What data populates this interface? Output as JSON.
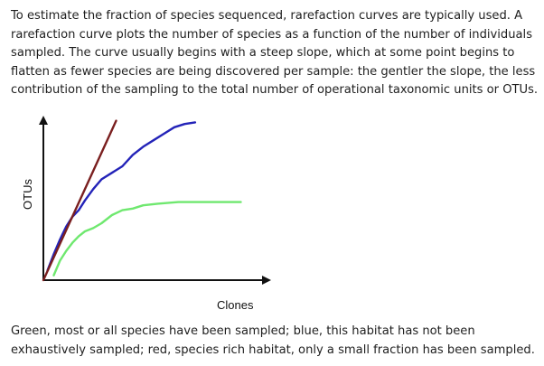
{
  "intro_text": "To estimate the fraction of species sequenced, rarefaction curves are typically used. A rarefaction curve plots the number of species as a function of the number of individuals sampled. The curve usually begins with a steep slope, which at some point begins to flatten as fewer species are being discovered per sample: the gentler the slope, the less contribution of the sampling to the total number of operational taxonomic units or OTUs.",
  "caption_text": "Green, most or all species have been sampled; blue, this habitat has not been exhaustively sampled; red, species rich habitat, only a small fraction has been sampled.",
  "chart_data": {
    "type": "line",
    "title": "",
    "xlabel": "Clones",
    "ylabel": "OTUs",
    "xlim": [
      0,
      100
    ],
    "ylim": [
      0,
      100
    ],
    "grid": false,
    "series": [
      {
        "name": "red",
        "color": "#7a1f1f",
        "x": [
          0,
          35
        ],
        "y": [
          0,
          98
        ]
      },
      {
        "name": "blue",
        "color": "#2323b8",
        "x": [
          2,
          5,
          8,
          11,
          14,
          17,
          20,
          24,
          28,
          33,
          38,
          43,
          48,
          53,
          58,
          63,
          68,
          73
        ],
        "y": [
          6,
          16,
          25,
          33,
          39,
          43,
          49,
          56,
          62,
          66,
          70,
          77,
          82,
          86,
          90,
          94,
          96,
          97
        ]
      },
      {
        "name": "green",
        "color": "#6fe86f",
        "x": [
          5,
          8,
          11,
          14,
          17,
          20,
          24,
          28,
          33,
          38,
          43,
          48,
          55,
          65,
          75,
          85,
          95
        ],
        "y": [
          3,
          12,
          18,
          23,
          27,
          30,
          32,
          35,
          40,
          43,
          44,
          46,
          47,
          48,
          48,
          48,
          48
        ]
      }
    ]
  }
}
